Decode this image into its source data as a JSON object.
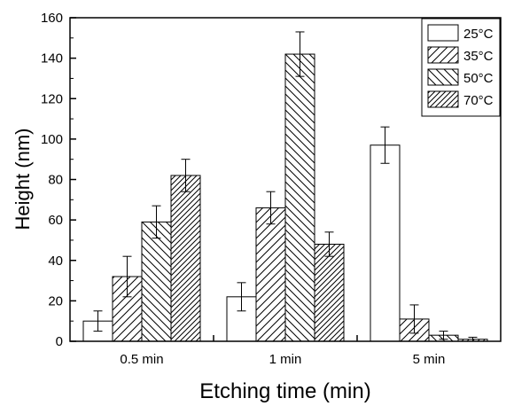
{
  "chart_data": {
    "type": "bar",
    "title": "",
    "xlabel": "Etching time (min)",
    "ylabel": "Height (nm)",
    "ylim": [
      0,
      160
    ],
    "yticks": [
      "0",
      "20",
      "40",
      "60",
      "80",
      "100",
      "120",
      "140",
      "160"
    ],
    "categories": [
      "0.5 min",
      "1 min",
      "5 min"
    ],
    "series": [
      {
        "name": "25°C",
        "hatch": "none",
        "values": [
          10,
          22,
          97
        ],
        "errors": [
          5,
          7,
          9
        ]
      },
      {
        "name": "35°C",
        "hatch": "forward-diagonal",
        "values": [
          32,
          66,
          11
        ],
        "errors": [
          10,
          8,
          7
        ]
      },
      {
        "name": "50°C",
        "hatch": "back-diagonal",
        "values": [
          59,
          142,
          3
        ],
        "errors": [
          8,
          11,
          2
        ]
      },
      {
        "name": "70°C",
        "hatch": "forward-diagonal-dense",
        "values": [
          82,
          48,
          1
        ],
        "errors": [
          8,
          6,
          1
        ]
      }
    ],
    "legend_position": "top-right",
    "grid": false
  }
}
